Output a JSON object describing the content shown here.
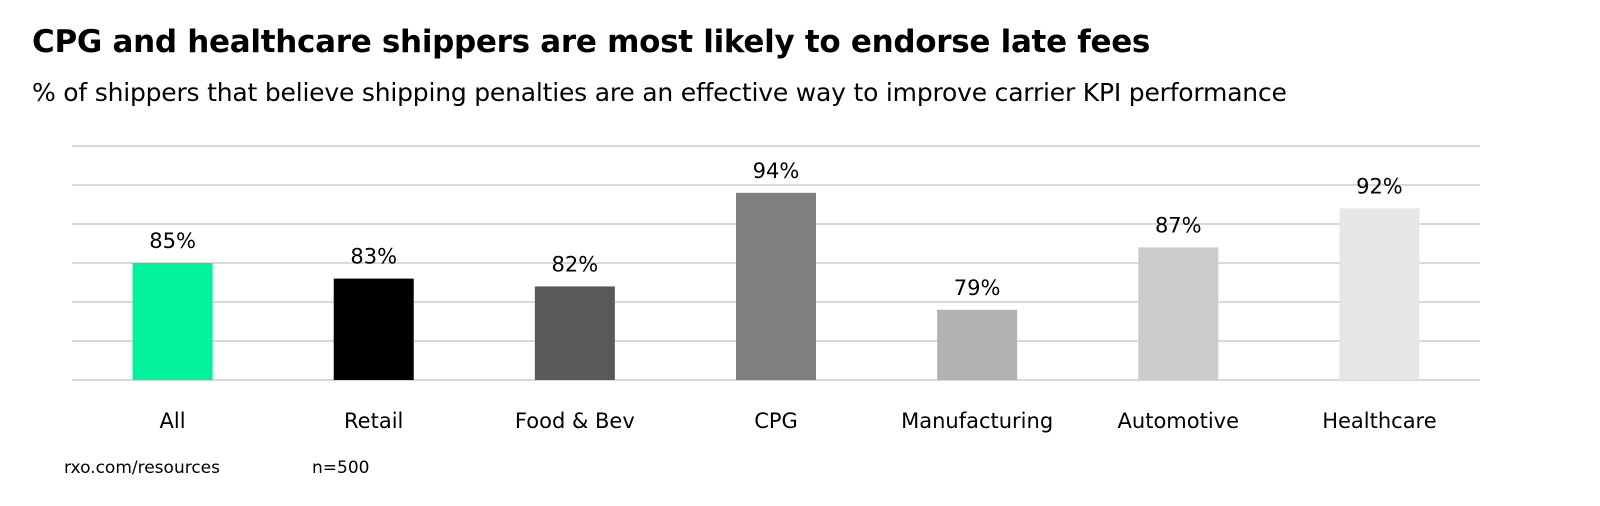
{
  "title": "CPG and healthcare shippers are most likely to endorse late fees",
  "subtitle": "% of shippers that believe shipping penalties are an effective way to improve carrier KPI performance",
  "footer": {
    "source": "rxo.com/resources",
    "sample": "n=500"
  },
  "chart_data": {
    "type": "bar",
    "categories": [
      "All",
      "Retail",
      "Food & Bev",
      "CPG",
      "Manufacturing",
      "Automotive",
      "Healthcare"
    ],
    "values": [
      85,
      83,
      82,
      94,
      79,
      87,
      92
    ],
    "data_labels": [
      "85%",
      "83%",
      "82%",
      "94%",
      "79%",
      "87%",
      "92%"
    ],
    "colors": [
      "#00F29B",
      "#000000",
      "#595959",
      "#7F7F7F",
      "#B2B2B2",
      "#CCCCCC",
      "#E6E6E6"
    ],
    "ylim": [
      70,
      100
    ],
    "grid_step": 5,
    "grid": true,
    "xlabel": "",
    "ylabel": ""
  }
}
